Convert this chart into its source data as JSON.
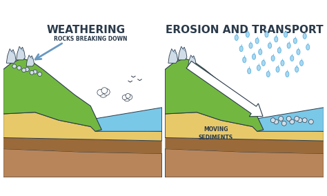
{
  "bg_color": "#ffffff",
  "left_title": "WEATHERING",
  "right_title": "EROSION AND TRANSPORT",
  "left_label": "ROCKS BREAKING DOWN",
  "right_label1": "MOVING",
  "right_label2": "SEDIMENTS",
  "title_fontsize": 11,
  "label_fontsize": 5.5,
  "colors": {
    "grass_green": "#72b840",
    "grass_green2": "#5aa030",
    "sand_yellow": "#e8c96a",
    "sand_mid": "#d4b050",
    "water_blue": "#7ac8e8",
    "water_light": "#a8daf0",
    "soil_brown": "#b8855a",
    "soil_dark": "#9a6a3a",
    "rock_gray": "#b8c8d8",
    "rock_light": "#d0dde8",
    "rock_outline": "#6888a8",
    "outline": "#2a3a4a",
    "arrow_blue": "#6898c0",
    "arrow_gray": "#8898a8",
    "rain_blue": "#5ab0e0",
    "rain_fill": "#a8d8f0"
  }
}
